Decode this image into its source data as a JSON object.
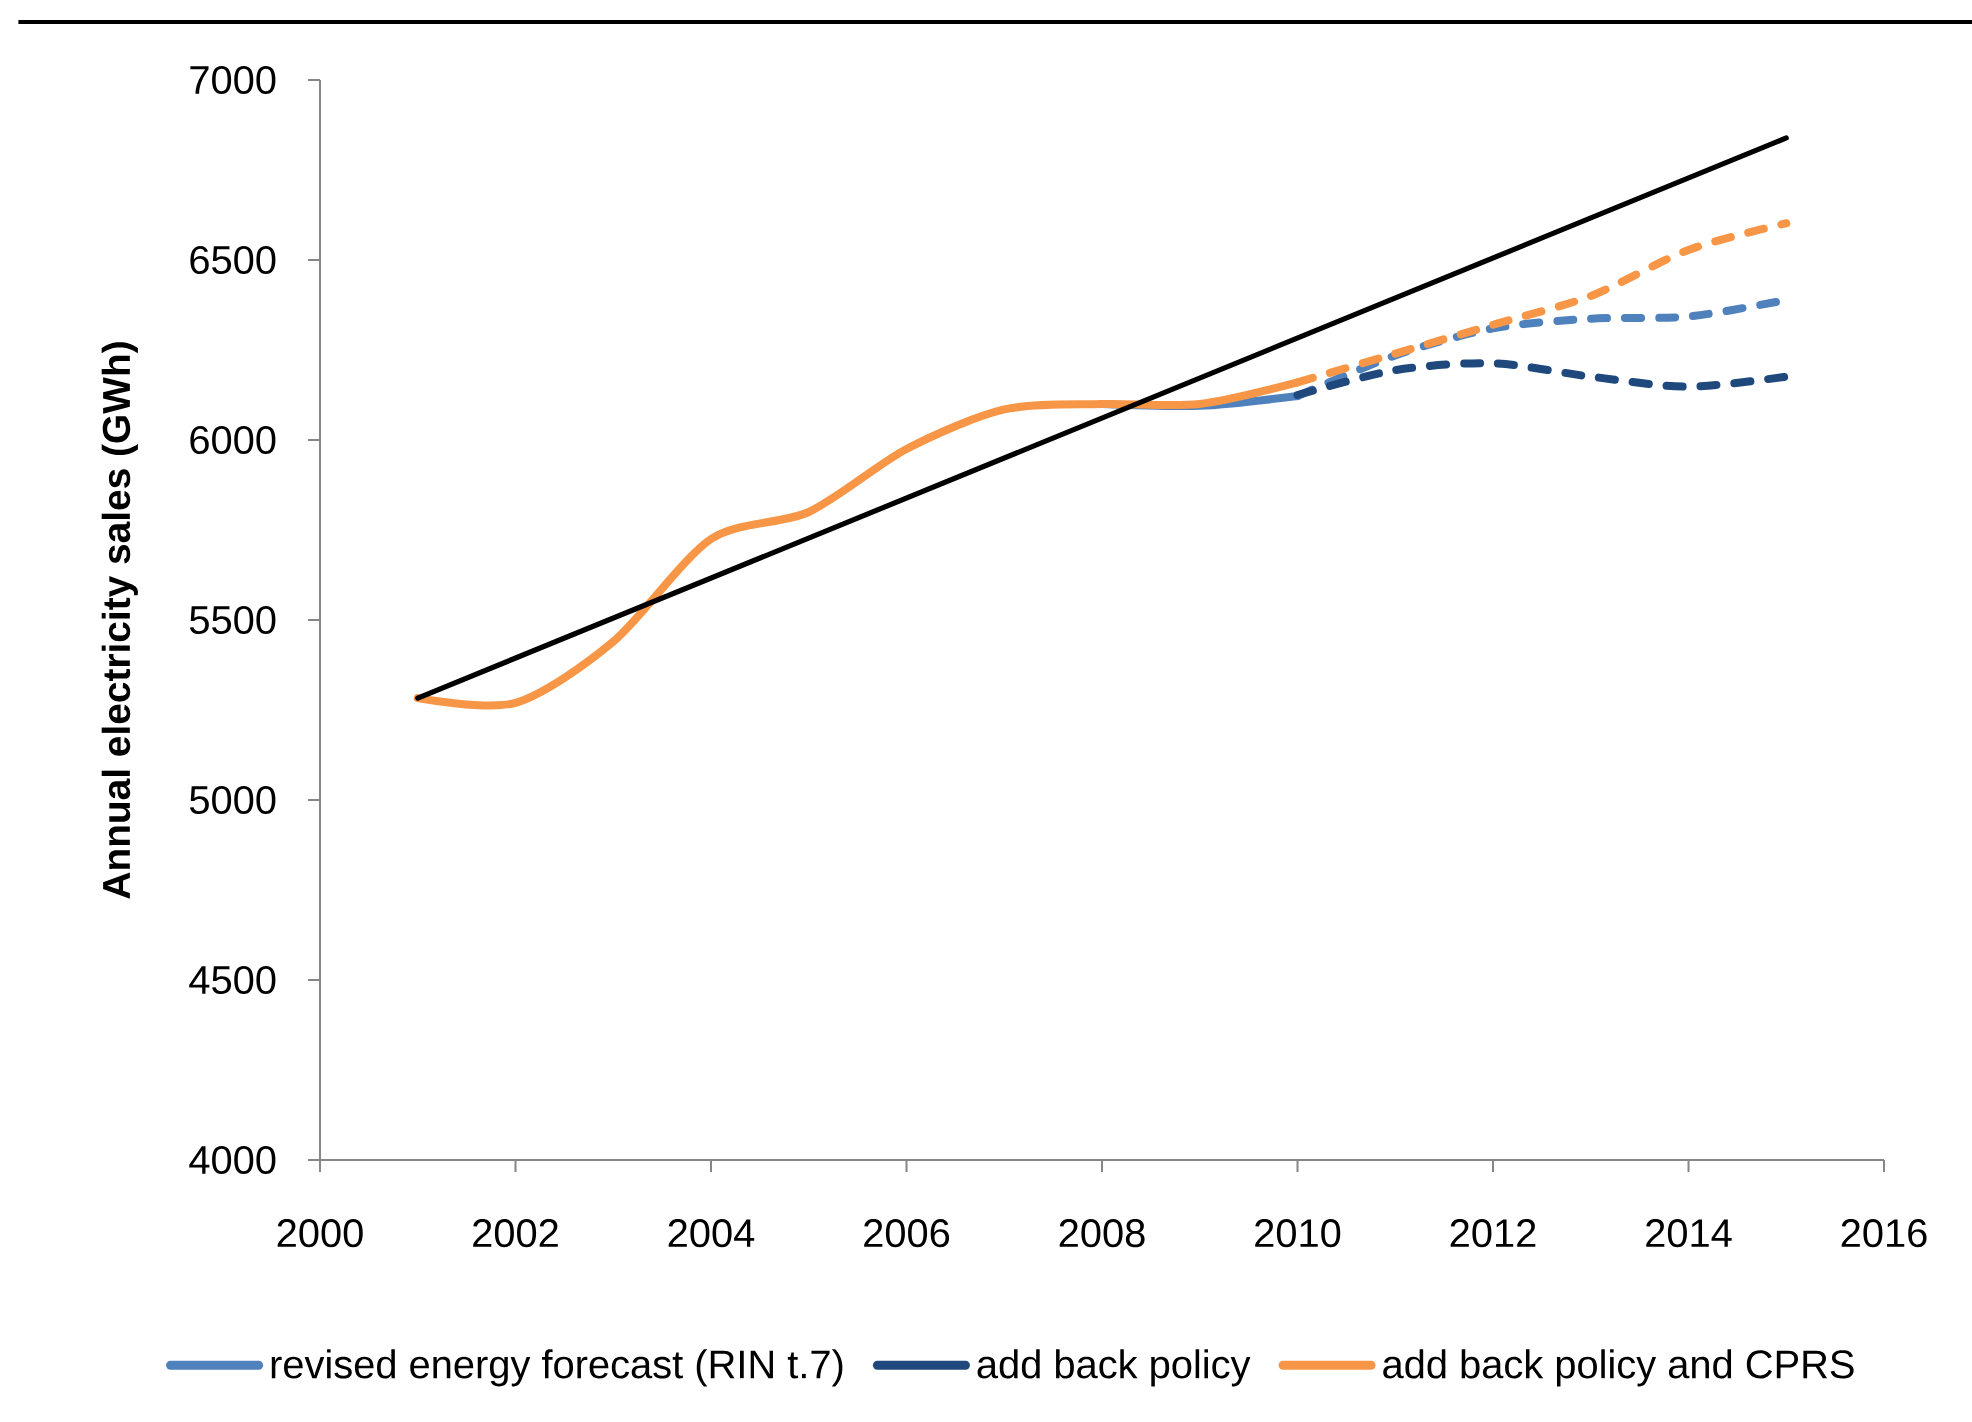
{
  "chart_data": {
    "type": "line",
    "ylabel": "Annual electricity sales (GWh)",
    "xlim": [
      2000,
      2016
    ],
    "xticks": [
      2000,
      2002,
      2004,
      2006,
      2008,
      2010,
      2012,
      2014,
      2016
    ],
    "ylim": [
      4000,
      7000
    ],
    "yticks": [
      4000,
      4500,
      5000,
      5500,
      6000,
      6500,
      7000
    ],
    "legend": "bottom",
    "marker": "none",
    "series": [
      {
        "name": "revised energy forecast (RIN t.7)",
        "color": "#4f81bd",
        "line_style": "solid",
        "x": [
          2008,
          2009,
          2010
        ],
        "values": [
          6100,
          6095,
          6122
        ]
      },
      {
        "color": "#4f81bd",
        "line_style": "dashed",
        "x": [
          2010,
          2011,
          2012,
          2013,
          2014,
          2015
        ],
        "values": [
          6122,
          6235,
          6310,
          6337,
          6343,
          6389
        ]
      },
      {
        "name": "add back policy",
        "color": "#1f497d",
        "line_style": "dashed",
        "x": [
          2010,
          2011,
          2012,
          2013,
          2014,
          2015
        ],
        "values": [
          6125,
          6194,
          6213,
          6176,
          6148,
          6176
        ]
      },
      {
        "name": "add back policy and CPRS",
        "color": "#f79646",
        "line_style": "solid",
        "x": [
          2001,
          2002,
          2003,
          2004,
          2005,
          2006,
          2007,
          2008,
          2009,
          2010
        ],
        "values": [
          5283,
          5270,
          5440,
          5725,
          5800,
          5975,
          6085,
          6100,
          6100,
          6160
        ]
      },
      {
        "color": "#f79646",
        "line_style": "dashed",
        "x": [
          2010,
          2011,
          2012,
          2013,
          2014,
          2015
        ],
        "values": [
          6160,
          6240,
          6320,
          6400,
          6528,
          6602
        ]
      },
      {
        "color": "#000000",
        "line_style": "solid",
        "x": [
          2001,
          2015
        ],
        "values": [
          5283,
          6839
        ]
      }
    ]
  }
}
